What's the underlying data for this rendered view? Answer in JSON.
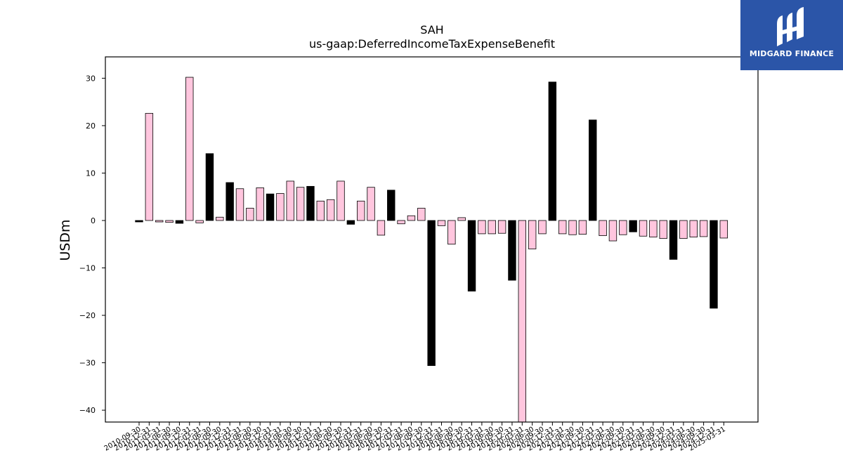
{
  "brand": {
    "name": "MIDGARD FINANCE",
    "bg_color": "#2b55a8"
  },
  "chart_data": {
    "type": "bar",
    "title": "SAH",
    "subtitle": "us-gaap:DeferredIncomeTaxExpenseBenefit",
    "ylabel": "USDm",
    "xlabel": "",
    "ylim": [
      -42.5,
      34.5
    ],
    "yticks": [
      -40,
      -30,
      -20,
      -10,
      0,
      10,
      20,
      30
    ],
    "colors": {
      "highlight": "#000000",
      "normal": "#ffc6de",
      "edge": "#000000"
    },
    "categories": [
      "2010-09-30",
      "2010-12-31",
      "2011-03-31",
      "2011-06-30",
      "2011-09-30",
      "2011-12-31",
      "2012-03-31",
      "2012-06-30",
      "2012-09-30",
      "2012-12-31",
      "2013-03-31",
      "2013-06-30",
      "2013-09-30",
      "2013-12-31",
      "2014-03-31",
      "2014-06-30",
      "2014-09-30",
      "2014-12-31",
      "2015-03-31",
      "2015-06-30",
      "2015-09-30",
      "2015-12-31",
      "2016-03-31",
      "2016-06-30",
      "2016-09-30",
      "2016-12-31",
      "2017-03-31",
      "2017-06-30",
      "2017-09-30",
      "2017-12-31",
      "2018-03-31",
      "2018-06-30",
      "2018-09-30",
      "2018-12-31",
      "2019-03-31",
      "2019-06-30",
      "2019-09-30",
      "2019-12-31",
      "2020-03-31",
      "2020-06-30",
      "2020-09-30",
      "2020-12-31",
      "2021-03-31",
      "2021-06-30",
      "2021-09-30",
      "2021-12-31",
      "2022-03-31",
      "2022-06-30",
      "2022-09-30",
      "2022-12-31",
      "2023-03-31",
      "2023-06-30",
      "2023-09-30",
      "2023-12-31",
      "2024-03-31",
      "2024-06-30",
      "2024-09-30",
      "2024-12-31",
      "2025-03-31"
    ],
    "values": [
      -0.3,
      22.6,
      -0.3,
      -0.4,
      -0.6,
      30.2,
      -0.5,
      14.1,
      0.7,
      8.0,
      6.7,
      2.6,
      6.9,
      5.6,
      5.7,
      8.3,
      7.0,
      7.2,
      4.1,
      4.4,
      8.3,
      -0.8,
      4.1,
      7.0,
      -3.1,
      6.4,
      -0.7,
      1.0,
      2.6,
      -30.6,
      -1.1,
      -5.0,
      0.6,
      -14.9,
      -2.8,
      -2.8,
      -2.7,
      -12.6,
      -42.5,
      -6.0,
      -2.8,
      29.2,
      -2.8,
      -3.0,
      -2.9,
      21.2,
      -3.2,
      -4.3,
      -3.0,
      -2.4,
      -3.3,
      -3.5,
      -3.8,
      -8.2,
      -3.8,
      -3.5,
      -3.4,
      -18.5,
      -3.7
    ],
    "highlight": [
      1,
      0,
      0,
      0,
      1,
      0,
      0,
      1,
      0,
      1,
      0,
      0,
      0,
      1,
      0,
      0,
      0,
      1,
      0,
      0,
      0,
      1,
      0,
      0,
      0,
      1,
      0,
      0,
      0,
      1,
      0,
      0,
      0,
      1,
      0,
      0,
      0,
      1,
      0,
      0,
      0,
      1,
      0,
      0,
      0,
      1,
      0,
      0,
      0,
      1,
      0,
      0,
      0,
      1,
      0,
      0,
      0,
      1,
      0
    ],
    "grid": false,
    "legend": "none"
  }
}
